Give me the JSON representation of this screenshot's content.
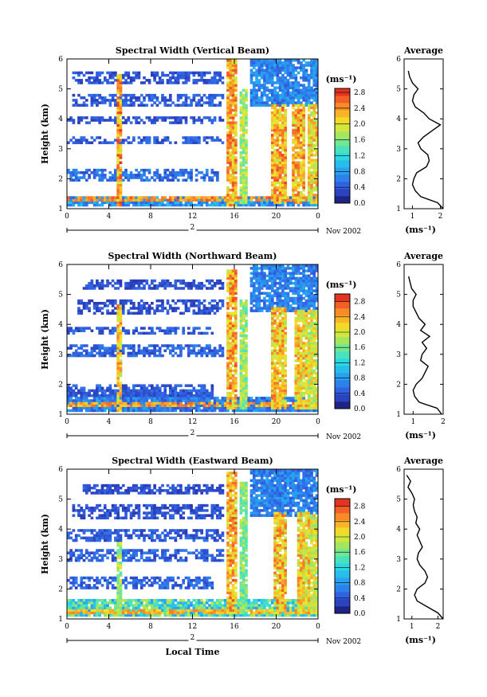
{
  "x_axis_label": "Local Time",
  "date_label": "Nov 2002",
  "day_label": "2",
  "chart_data": [
    {
      "type": "heatmap",
      "title": "Spectral Width (Vertical Beam)",
      "ylabel": "Height (km)",
      "xlabel": "",
      "xlim": [
        0,
        24
      ],
      "x_ticks": [
        "0",
        "4",
        "8",
        "12",
        "16",
        "20",
        "0"
      ],
      "ylim": [
        1,
        6
      ],
      "y_ticks": [
        "1",
        "2",
        "3",
        "4",
        "5",
        "6"
      ],
      "colorbar": {
        "label": "(ms⁻¹)",
        "range": [
          0,
          2.9
        ],
        "ticks": [
          "0.0",
          "0.4",
          "0.8",
          "1.2",
          "1.6",
          "2.0",
          "2.4",
          "2.8"
        ]
      },
      "bands": [
        {
          "y": [
            1.05,
            1.45
          ],
          "x": [
            0,
            24
          ],
          "value": 0.7
        },
        {
          "y": [
            1.9,
            2.35
          ],
          "x": [
            0,
            14.5
          ],
          "value": 0.5
        },
        {
          "y": [
            3.15,
            3.45
          ],
          "x": [
            0,
            15
          ],
          "value": 0.4
        },
        {
          "y": [
            3.85,
            4.05
          ],
          "x": [
            0,
            15
          ],
          "value": 0.35
        },
        {
          "y": [
            4.45,
            4.8
          ],
          "x": [
            0.5,
            15
          ],
          "value": 0.4
        },
        {
          "y": [
            5.2,
            5.55
          ],
          "x": [
            0.5,
            15
          ],
          "value": 0.35
        }
      ],
      "events": [
        {
          "x": [
            4.7,
            5.3
          ],
          "y": [
            1.1,
            5.5
          ],
          "value": 2.7
        },
        {
          "x": [
            15.2,
            16.3
          ],
          "y": [
            1.1,
            6
          ],
          "value": 2.6
        },
        {
          "x": [
            16.5,
            17.2
          ],
          "y": [
            1.2,
            5.0
          ],
          "value": 2.0
        },
        {
          "x": [
            19.5,
            21.0
          ],
          "y": [
            1.2,
            4.5
          ],
          "value": 2.6
        },
        {
          "x": [
            21.5,
            22.8
          ],
          "y": [
            1.2,
            4.5
          ],
          "value": 2.6
        },
        {
          "x": [
            23.0,
            24.0
          ],
          "y": [
            1.2,
            4.5
          ],
          "value": 2.4
        }
      ],
      "ridge": {
        "x": [
          0,
          24
        ],
        "y": 1.35,
        "value": 2.7
      },
      "average": {
        "title": "Average",
        "xlabel": "(ms⁻¹)",
        "xlim": [
          0.7,
          2.1
        ],
        "x_ticks": [
          "1",
          "2"
        ],
        "ylim": [
          1,
          6
        ],
        "y_ticks": [
          "1",
          "2",
          "3",
          "4",
          "5",
          "6"
        ],
        "height": [
          1.0,
          1.2,
          1.4,
          1.6,
          1.8,
          2.0,
          2.2,
          2.4,
          2.6,
          2.8,
          3.0,
          3.2,
          3.4,
          3.6,
          3.8,
          4.0,
          4.2,
          4.4,
          4.6,
          4.8,
          5.0,
          5.2,
          5.4,
          5.6
        ],
        "value": [
          2.1,
          1.9,
          1.3,
          1.1,
          1.0,
          1.05,
          1.15,
          1.5,
          1.6,
          1.55,
          1.3,
          1.2,
          1.4,
          1.7,
          2.0,
          1.6,
          1.4,
          1.1,
          1.0,
          1.05,
          1.2,
          1.0,
          0.9,
          0.85
        ]
      }
    },
    {
      "type": "heatmap",
      "title": "Spectral Width (Northward Beam)",
      "ylabel": "Height (km)",
      "xlabel": "",
      "xlim": [
        0,
        24
      ],
      "x_ticks": [
        "0",
        "4",
        "8",
        "12",
        "16",
        "20",
        "0"
      ],
      "ylim": [
        1,
        6
      ],
      "y_ticks": [
        "1",
        "2",
        "3",
        "4",
        "5",
        "6"
      ],
      "colorbar": {
        "label": "(ms⁻¹)",
        "range": [
          0,
          3.0
        ],
        "ticks": [
          "0.0",
          "0.4",
          "0.8",
          "1.2",
          "1.6",
          "2.0",
          "2.4",
          "2.8"
        ]
      },
      "bands": [
        {
          "y": [
            1.1,
            1.6
          ],
          "x": [
            0,
            24
          ],
          "value": 0.6
        },
        {
          "y": [
            1.6,
            2.0
          ],
          "x": [
            0,
            14
          ],
          "value": 0.4
        },
        {
          "y": [
            2.9,
            3.3
          ],
          "x": [
            0,
            15
          ],
          "value": 0.45
        },
        {
          "y": [
            3.7,
            3.9
          ],
          "x": [
            0,
            14
          ],
          "value": 0.4
        },
        {
          "y": [
            4.3,
            4.8
          ],
          "x": [
            1,
            15
          ],
          "value": 0.35
        },
        {
          "y": [
            5.2,
            5.5
          ],
          "x": [
            1.5,
            15
          ],
          "value": 0.35
        }
      ],
      "events": [
        {
          "x": [
            4.7,
            5.3
          ],
          "y": [
            1.1,
            4.7
          ],
          "value": 2.6
        },
        {
          "x": [
            15.2,
            16.3
          ],
          "y": [
            1.2,
            5.8
          ],
          "value": 2.7
        },
        {
          "x": [
            16.5,
            17.2
          ],
          "y": [
            1.2,
            4.8
          ],
          "value": 2.0
        },
        {
          "x": [
            19.5,
            21.0
          ],
          "y": [
            1.2,
            4.6
          ],
          "value": 2.6
        },
        {
          "x": [
            21.8,
            23.0
          ],
          "y": [
            1.2,
            4.5
          ],
          "value": 2.5
        },
        {
          "x": [
            23.0,
            24.0
          ],
          "y": [
            1.2,
            4.5
          ],
          "value": 2.3
        }
      ],
      "ridge": {
        "x": [
          0,
          24
        ],
        "y": 1.3,
        "value": 2.7
      },
      "average": {
        "title": "Average",
        "xlabel": "(ms⁻¹)",
        "xlim": [
          0.7,
          2.0
        ],
        "x_ticks": [
          "1",
          "2"
        ],
        "ylim": [
          1,
          6
        ],
        "y_ticks": [
          "1",
          "2",
          "3",
          "4",
          "5",
          "6"
        ],
        "height": [
          1.0,
          1.2,
          1.4,
          1.6,
          1.8,
          2.0,
          2.2,
          2.4,
          2.6,
          2.8,
          3.0,
          3.2,
          3.4,
          3.6,
          3.8,
          4.0,
          4.2,
          4.4,
          4.6,
          4.8,
          5.0,
          5.2,
          5.4,
          5.6
        ],
        "value": [
          1.95,
          1.8,
          1.2,
          1.05,
          1.0,
          1.1,
          1.3,
          1.4,
          1.5,
          1.25,
          1.3,
          1.45,
          1.3,
          1.55,
          1.25,
          1.4,
          1.2,
          1.1,
          1.0,
          1.0,
          1.1,
          0.95,
          0.9,
          0.85
        ]
      }
    },
    {
      "type": "heatmap",
      "title": "Spectral Width (Eastward Beam)",
      "ylabel": "Height (km)",
      "xlabel": "Local Time",
      "xlim": [
        0,
        24
      ],
      "x_ticks": [
        "0",
        "4",
        "8",
        "12",
        "16",
        "20",
        "0"
      ],
      "ylim": [
        1,
        6
      ],
      "y_ticks": [
        "1",
        "2",
        "3",
        "4",
        "5",
        "6"
      ],
      "colorbar": {
        "label": "(ms⁻¹)",
        "range": [
          0,
          3.0
        ],
        "ticks": [
          "0.0",
          "0.4",
          "0.8",
          "1.2",
          "1.6",
          "2.0",
          "2.4",
          "2.8"
        ]
      },
      "bands": [
        {
          "y": [
            1.1,
            1.7
          ],
          "x": [
            0,
            24
          ],
          "value": 1.3
        },
        {
          "y": [
            2.0,
            2.4
          ],
          "x": [
            0,
            14
          ],
          "value": 0.45
        },
        {
          "y": [
            2.9,
            3.3
          ],
          "x": [
            0,
            15
          ],
          "value": 0.45
        },
        {
          "y": [
            3.6,
            4.0
          ],
          "x": [
            0,
            15
          ],
          "value": 0.4
        },
        {
          "y": [
            4.3,
            4.8
          ],
          "x": [
            0.5,
            15
          ],
          "value": 0.35
        },
        {
          "y": [
            5.2,
            5.5
          ],
          "x": [
            1.5,
            15
          ],
          "value": 0.35
        }
      ],
      "events": [
        {
          "x": [
            4.7,
            5.3
          ],
          "y": [
            1.1,
            3.6
          ],
          "value": 2.0
        },
        {
          "x": [
            15.2,
            16.3
          ],
          "y": [
            1.2,
            5.9
          ],
          "value": 2.7
        },
        {
          "x": [
            16.5,
            17.3
          ],
          "y": [
            1.2,
            5.6
          ],
          "value": 1.9
        },
        {
          "x": [
            19.8,
            21.0
          ],
          "y": [
            1.2,
            4.6
          ],
          "value": 2.6
        },
        {
          "x": [
            22.0,
            23.2
          ],
          "y": [
            1.2,
            4.6
          ],
          "value": 2.5
        },
        {
          "x": [
            23.2,
            24.0
          ],
          "y": [
            1.2,
            4.5
          ],
          "value": 2.3
        }
      ],
      "ridge": {
        "x": [
          0,
          24
        ],
        "y": 1.25,
        "value": 2.6
      },
      "average": {
        "title": "Average",
        "xlabel": "(ms⁻¹)",
        "xlim": [
          0.7,
          2.2
        ],
        "x_ticks": [
          "1",
          "2"
        ],
        "ylim": [
          1,
          6
        ],
        "y_ticks": [
          "1",
          "2",
          "3",
          "4",
          "5",
          "6"
        ],
        "height": [
          1.0,
          1.2,
          1.4,
          1.6,
          1.8,
          2.0,
          2.2,
          2.4,
          2.6,
          2.8,
          3.0,
          3.2,
          3.4,
          3.6,
          3.8,
          4.0,
          4.2,
          4.4,
          4.6,
          4.8,
          5.0,
          5.2,
          5.4,
          5.6,
          5.8
        ],
        "value": [
          2.2,
          2.0,
          1.6,
          1.2,
          1.1,
          1.2,
          1.5,
          1.6,
          1.5,
          1.3,
          1.2,
          1.25,
          1.4,
          1.3,
          1.2,
          1.3,
          1.15,
          1.2,
          1.1,
          1.05,
          1.1,
          1.0,
          0.85,
          0.95,
          0.8
        ]
      }
    }
  ]
}
